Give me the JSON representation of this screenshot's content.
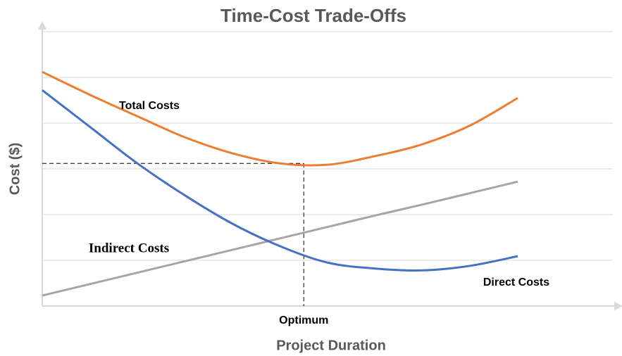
{
  "chart_data": {
    "type": "line",
    "title": "Time-Cost Trade-Offs",
    "x_label": "Project Duration",
    "y_label": "Cost ($)",
    "x": [
      0,
      1,
      2,
      3,
      4,
      5,
      6,
      7,
      8,
      9,
      10
    ],
    "xlim": [
      0,
      12
    ],
    "ylim": [
      0,
      6
    ],
    "yticks": [
      0,
      1,
      2,
      3,
      4,
      5,
      6
    ],
    "grid": true,
    "series": [
      {
        "name": "Total Costs",
        "color": "#ed7d31",
        "values": [
          5.12,
          4.62,
          4.15,
          3.69,
          3.34,
          3.12,
          3.09,
          3.28,
          3.54,
          3.95,
          4.55
        ]
      },
      {
        "name": "Indirect Costs",
        "color": "#a5a5a5",
        "values": [
          0.23,
          0.48,
          0.73,
          0.98,
          1.23,
          1.48,
          1.73,
          1.98,
          2.22,
          2.47,
          2.72
        ]
      },
      {
        "name": "Direct Costs",
        "color": "#4472c4",
        "values": [
          4.72,
          3.92,
          3.12,
          2.42,
          1.8,
          1.31,
          0.95,
          0.82,
          0.78,
          0.88,
          1.09
        ]
      }
    ],
    "optimum": {
      "label": "Optimum",
      "x": 5.5,
      "y": 3.12
    }
  }
}
